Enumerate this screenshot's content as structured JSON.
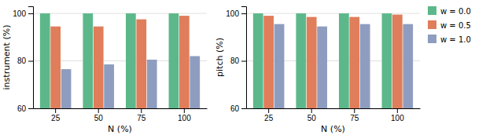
{
  "chart_data": [
    {
      "type": "bar",
      "xlabel": "N (%)",
      "ylabel": "instrument (%)",
      "categories": [
        25,
        50,
        75,
        100
      ],
      "series": [
        {
          "name": "w = 0.0",
          "color": "#5cb88a",
          "values": [
            100,
            100,
            100,
            100
          ]
        },
        {
          "name": "w = 0.5",
          "color": "#e07d5a",
          "values": [
            94.5,
            94.5,
            97.5,
            99.0
          ]
        },
        {
          "name": "w = 1.0",
          "color": "#8e9dbf",
          "values": [
            76.5,
            78.5,
            80.5,
            82.0
          ]
        }
      ],
      "ylim": [
        60,
        103
      ],
      "yticks": [
        60,
        80,
        100
      ],
      "grid": true
    },
    {
      "type": "bar",
      "xlabel": "N (%)",
      "ylabel": "pitch (%)",
      "categories": [
        25,
        50,
        75,
        100
      ],
      "series": [
        {
          "name": "w = 0.0",
          "color": "#5cb88a",
          "values": [
            100,
            100,
            100,
            100
          ]
        },
        {
          "name": "w = 0.5",
          "color": "#e07d5a",
          "values": [
            99.0,
            98.5,
            98.5,
            99.5
          ]
        },
        {
          "name": "w = 1.0",
          "color": "#8e9dbf",
          "values": [
            95.5,
            94.5,
            95.5,
            95.5
          ]
        }
      ],
      "ylim": [
        60,
        103
      ],
      "yticks": [
        60,
        80,
        100
      ],
      "grid": true,
      "legend": "right"
    }
  ]
}
